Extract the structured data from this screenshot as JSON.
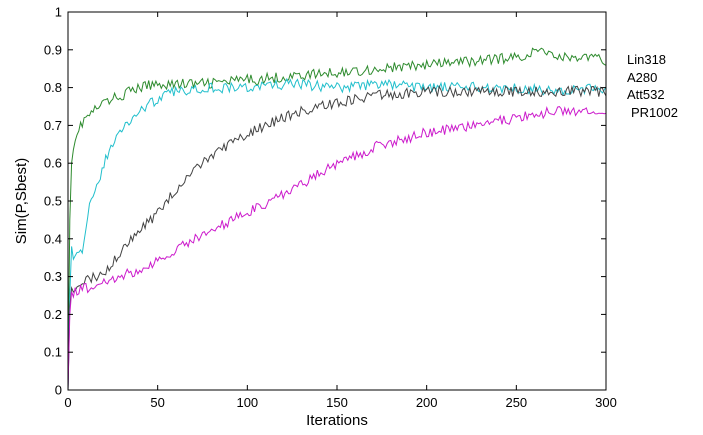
{
  "chart_data": {
    "type": "line",
    "xlabel": "Iterations",
    "ylabel": "Sim(P,Sbest)",
    "xlim": [
      0,
      300
    ],
    "ylim": [
      0,
      1
    ],
    "xticks": [
      "0",
      "50",
      "100",
      "150",
      "200",
      "250",
      "300"
    ],
    "yticks": [
      "0",
      "0.1",
      "0.2",
      "0.3",
      "0.4",
      "0.5",
      "0.6",
      "0.7",
      "0.8",
      "0.9",
      "1"
    ],
    "grid": false,
    "legend_position": "right",
    "series": [
      {
        "name": "Lin318",
        "color": "#2e8b2e",
        "x": [
          0,
          1,
          2,
          3,
          5,
          7,
          10,
          15,
          20,
          25,
          30,
          40,
          50,
          60,
          75,
          100,
          125,
          150,
          175,
          200,
          225,
          250,
          265,
          275,
          290,
          300
        ],
        "values": [
          0.0,
          0.45,
          0.6,
          0.65,
          0.68,
          0.7,
          0.72,
          0.74,
          0.76,
          0.77,
          0.78,
          0.8,
          0.81,
          0.81,
          0.81,
          0.82,
          0.83,
          0.84,
          0.85,
          0.86,
          0.87,
          0.88,
          0.9,
          0.88,
          0.88,
          0.87
        ]
      },
      {
        "name": "A280",
        "color": "#22bfcc",
        "x": [
          0,
          1,
          2,
          3,
          5,
          8,
          10,
          12,
          15,
          20,
          25,
          30,
          40,
          50,
          60,
          75,
          100,
          125,
          150,
          175,
          200,
          225,
          250,
          275,
          300
        ],
        "values": [
          0.0,
          0.25,
          0.38,
          0.36,
          0.37,
          0.37,
          0.42,
          0.48,
          0.52,
          0.6,
          0.65,
          0.69,
          0.74,
          0.77,
          0.79,
          0.8,
          0.8,
          0.81,
          0.8,
          0.81,
          0.8,
          0.8,
          0.8,
          0.79,
          0.8
        ]
      },
      {
        "name": "Att532",
        "color": "#444444",
        "x": [
          0,
          1,
          2,
          5,
          10,
          15,
          20,
          25,
          30,
          40,
          50,
          60,
          75,
          100,
          125,
          150,
          175,
          200,
          225,
          250,
          275,
          300
        ],
        "values": [
          0.0,
          0.22,
          0.27,
          0.28,
          0.29,
          0.3,
          0.31,
          0.34,
          0.37,
          0.42,
          0.47,
          0.53,
          0.6,
          0.68,
          0.73,
          0.76,
          0.78,
          0.79,
          0.79,
          0.79,
          0.79,
          0.79
        ]
      },
      {
        "name": "PR1002",
        "color": "#cc1ccc",
        "x": [
          0,
          1,
          2,
          5,
          10,
          15,
          20,
          25,
          30,
          40,
          50,
          60,
          75,
          100,
          125,
          150,
          175,
          200,
          225,
          250,
          275,
          300
        ],
        "values": [
          0.0,
          0.2,
          0.26,
          0.26,
          0.27,
          0.28,
          0.29,
          0.29,
          0.3,
          0.32,
          0.34,
          0.37,
          0.41,
          0.47,
          0.53,
          0.6,
          0.65,
          0.68,
          0.7,
          0.72,
          0.74,
          0.73
        ]
      }
    ]
  }
}
